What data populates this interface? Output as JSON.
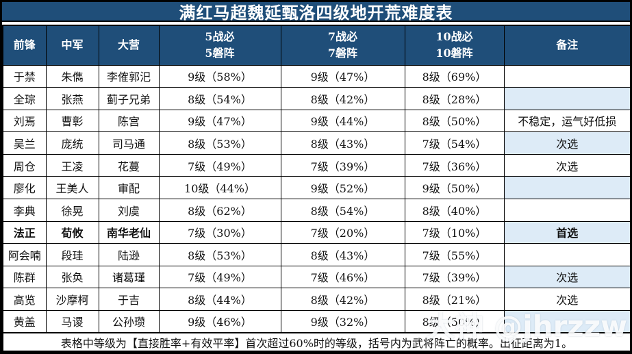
{
  "title": "满红马超魏延甄洛四级地开荒难度表",
  "colors": {
    "header_bg": "#1F4E79",
    "header_text": "#FFFFFF",
    "highlight_bg": "#DDEBF7",
    "border": "#000000"
  },
  "table": {
    "columns": [
      "前锋",
      "中军",
      "大营",
      "5战必\n5磐阵",
      "7战必\n7磐阵",
      "10战必\n10磐阵",
      "备注"
    ],
    "rows": [
      {
        "vanguard": "于禁",
        "middle": "朱儁",
        "camp": "李傕郭汜",
        "battle5": "9级（58%）",
        "battle7": "9级（47%）",
        "battle10": "8级（69%）",
        "note": "",
        "note_highlight": false,
        "bold": false
      },
      {
        "vanguard": "全琮",
        "middle": "张燕",
        "camp": "蓟子兄弟",
        "battle5": "8级（54%）",
        "battle7": "8级（42%）",
        "battle10": "8级（28%）",
        "note": "",
        "note_highlight": true,
        "bold": false
      },
      {
        "vanguard": "刘焉",
        "middle": "曹彰",
        "camp": "陈宫",
        "battle5": "9级（47%）",
        "battle7": "9级（44%）",
        "battle10": "8级（50%）",
        "note": "不稳定，运气好低损",
        "note_highlight": false,
        "bold": false
      },
      {
        "vanguard": "吴兰",
        "middle": "庞统",
        "camp": "司马通",
        "battle5": "8级（53%）",
        "battle7": "8级（43%）",
        "battle10": "7级（54%）",
        "note": "次选",
        "note_highlight": true,
        "bold": false
      },
      {
        "vanguard": "周仓",
        "middle": "王凌",
        "camp": "花蔓",
        "battle5": "7级（49%）",
        "battle7": "7级（39%）",
        "battle10": "7级（36%）",
        "note": "次选",
        "note_highlight": false,
        "bold": false
      },
      {
        "vanguard": "廖化",
        "middle": "王美人",
        "camp": "审配",
        "battle5": "10级（44%）",
        "battle7": "9级（52%）",
        "battle10": "9级（50%）",
        "note": "",
        "note_highlight": true,
        "bold": false
      },
      {
        "vanguard": "李典",
        "middle": "徐晃",
        "camp": "刘虞",
        "battle5": "8级（62%）",
        "battle7": "8级（54%）",
        "battle10": "8级（40%）",
        "note": "",
        "note_highlight": false,
        "bold": false
      },
      {
        "vanguard": "法正",
        "middle": "荀攸",
        "camp": "南华老仙",
        "battle5": "7级（30%）",
        "battle7": "7级（20%）",
        "battle10": "7级（10%）",
        "note": "首选",
        "note_highlight": true,
        "bold": true
      },
      {
        "vanguard": "阿会喃",
        "middle": "段珪",
        "camp": "陆逊",
        "battle5": "8级（53%）",
        "battle7": "8级（43%）",
        "battle10": "7级（55%）",
        "note": "",
        "note_highlight": false,
        "bold": false
      },
      {
        "vanguard": "陈群",
        "middle": "张奂",
        "camp": "诸葛瑾",
        "battle5": "7级（49%）",
        "battle7": "7级（46%）",
        "battle10": "7级（39%）",
        "note": "次选",
        "note_highlight": true,
        "bold": false
      },
      {
        "vanguard": "高览",
        "middle": "沙摩柯",
        "camp": "于吉",
        "battle5": "8级（44%）",
        "battle7": "8级（42%）",
        "battle10": "8级（21%）",
        "note": "次选",
        "note_highlight": false,
        "bold": false
      },
      {
        "vanguard": "黄盖",
        "middle": "马谡",
        "camp": "公孙瓒",
        "battle5": "9级（46%）",
        "battle7": "9级（32%）",
        "battle10": "8级（50%）",
        "note": "",
        "note_highlight": true,
        "bold": false
      }
    ]
  },
  "footer": "表格中等级为【直接胜率+有效平率】首次超过60%时的等级，括号内为武将阵亡的概率。出征距离为1。",
  "watermark": "大神 @jhrzzw"
}
